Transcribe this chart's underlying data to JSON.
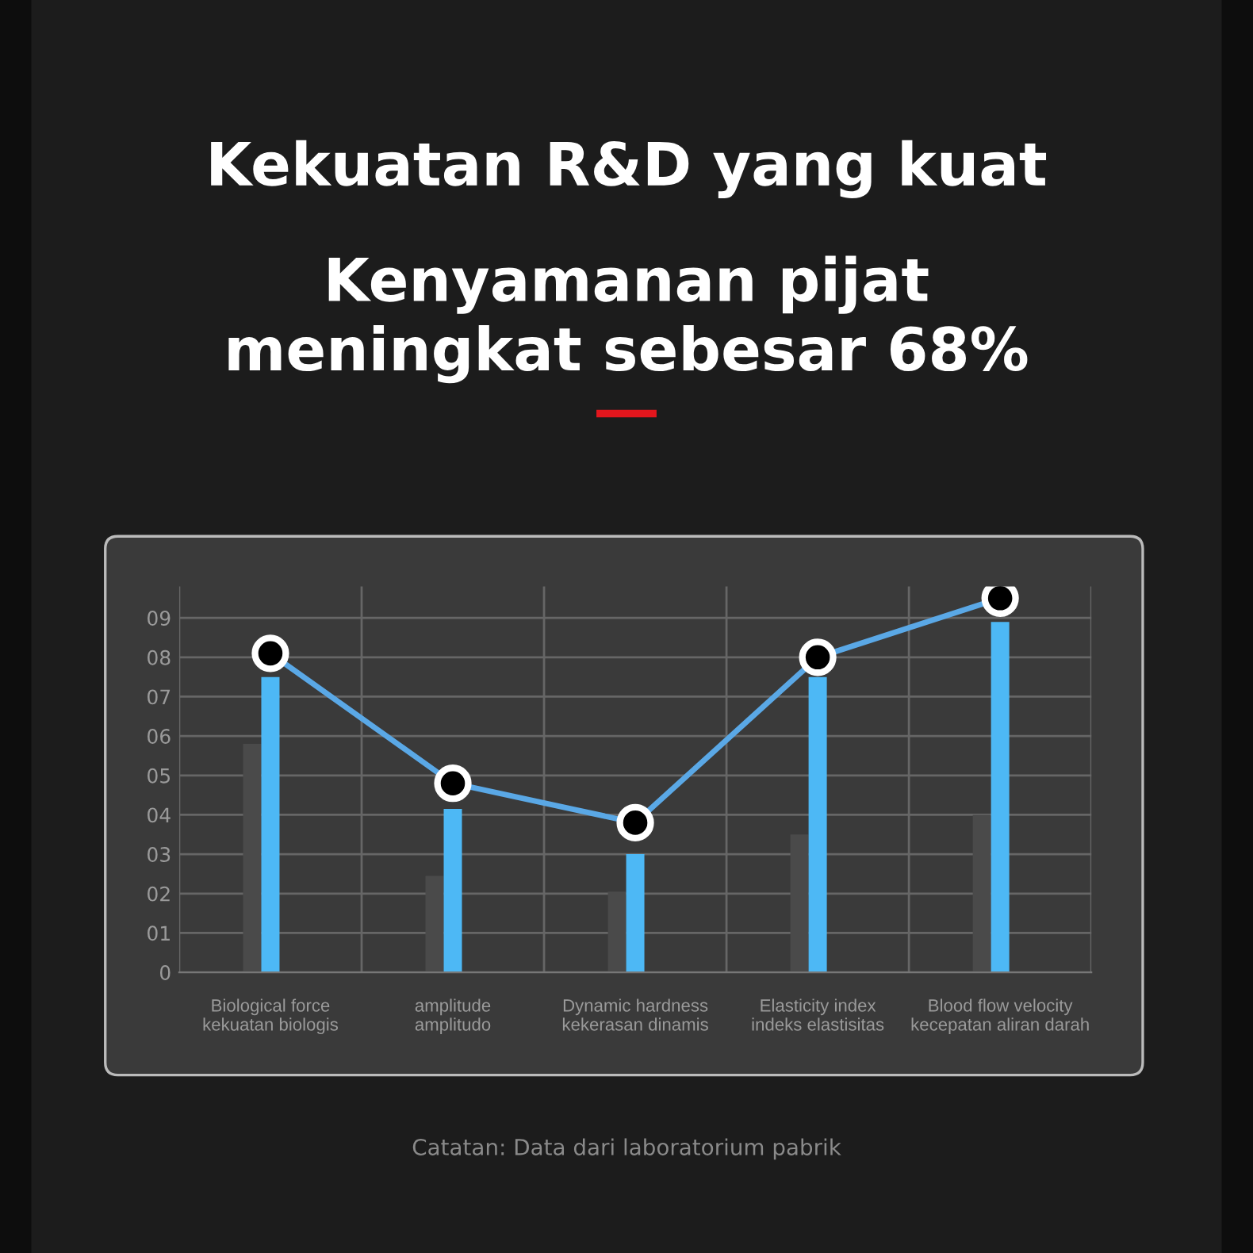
{
  "chart_data": {
    "type": "bar",
    "title": "Kekuatan R&D yang kuat",
    "subtitle": "Kenyamanan pijat\nmeningkat sebesar 68%",
    "categories": [
      "Biological force\nkekuatan biologis",
      "amplitude\namplitudo",
      "Dynamic hardness\nkekerasan dinamis",
      "Elasticity index\nindeks elastisitas",
      "Blood flow velocity\nkecepatan aliran darah"
    ],
    "series": [
      {
        "color": "#4a4a4a",
        "values": [
          5.8,
          2.45,
          2.05,
          3.5,
          4.0
        ]
      },
      {
        "color": "#4db8f5",
        "values": [
          7.5,
          4.15,
          3.0,
          7.5,
          8.9
        ]
      },
      {
        "type": "line",
        "color": "#5aa8e6",
        "values": [
          8.1,
          4.8,
          3.8,
          8.0,
          9.5
        ]
      }
    ],
    "ylim": [
      0,
      9.8
    ],
    "yticks": [
      0,
      {
        "value": 1,
        "label": "01"
      },
      {
        "value": 2,
        "label": "02"
      },
      {
        "value": 3,
        "label": "03"
      },
      {
        "value": 4,
        "label": "04"
      },
      {
        "value": 5,
        "label": "05"
      },
      {
        "value": 6,
        "label": "06"
      },
      {
        "value": 7,
        "label": "07"
      },
      {
        "value": 8,
        "label": "08"
      },
      {
        "value": 9,
        "label": "09"
      }
    ],
    "grid": true,
    "marker": "circle",
    "annotations": [
      "Catatan: Data dari laboratorium pabrik"
    ]
  }
}
